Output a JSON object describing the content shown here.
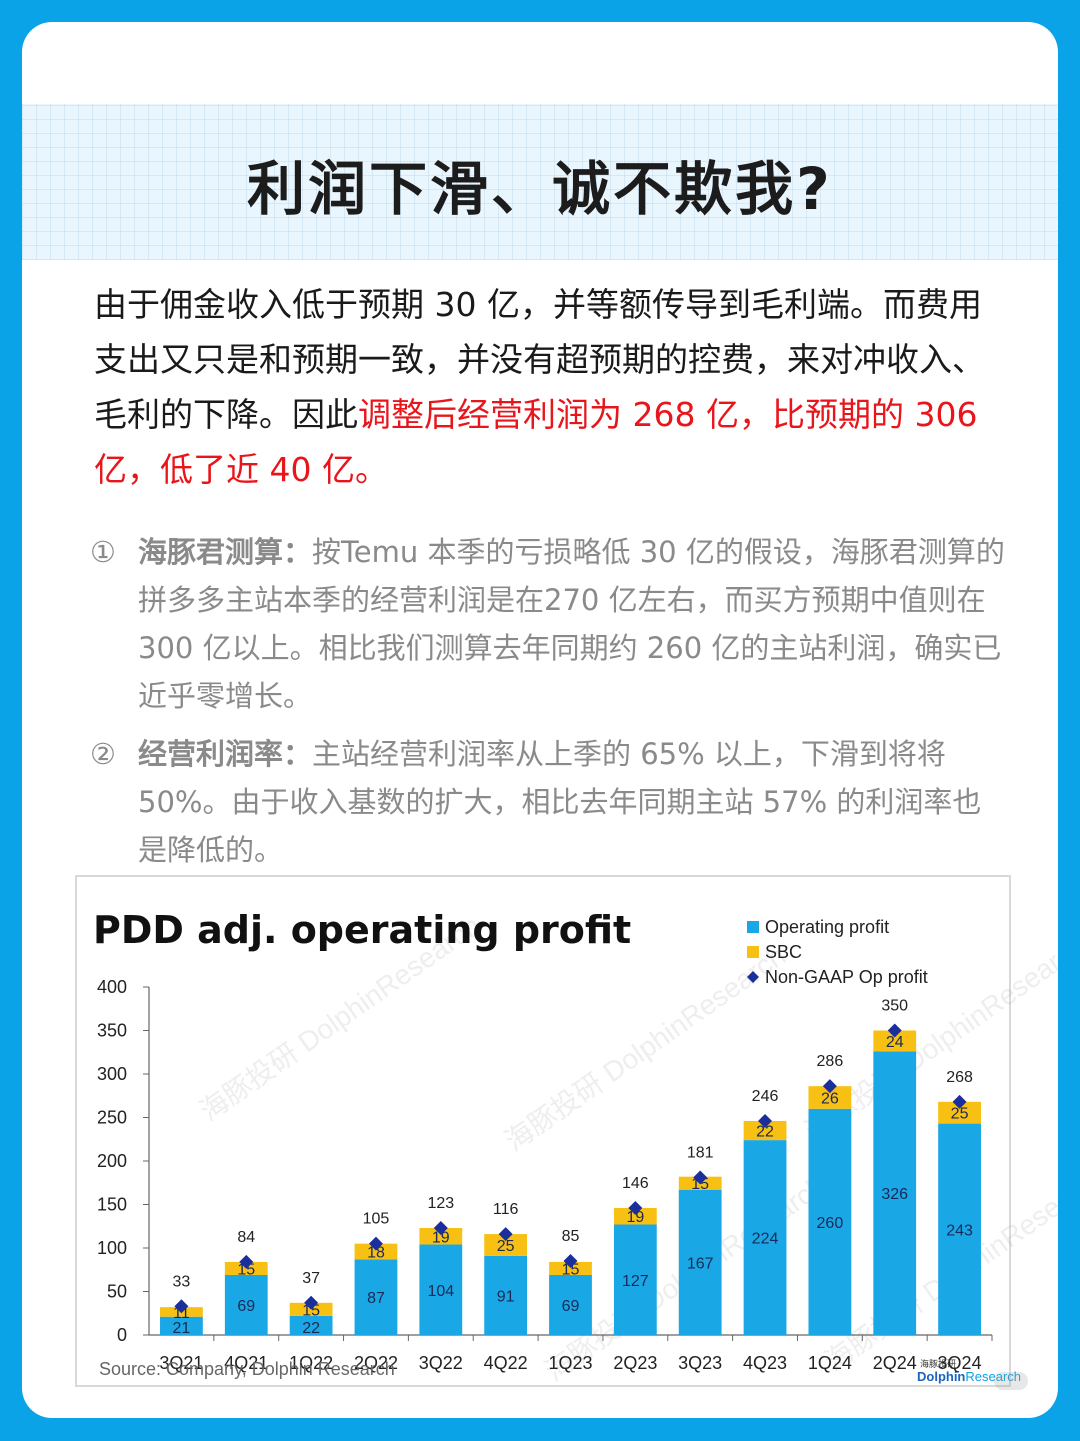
{
  "title": "利润下滑、诚不欺我?",
  "intro": {
    "plain": "由于佣金收入低于预期 30 亿，并等额传导到毛利端。而费用支出又只是和预期一致，并没有超预期的控费，来对冲收入、毛利的下降。因此",
    "highlight": "调整后经营利润为 268 亿，比预期的 306 亿，低了近 40 亿。"
  },
  "notes": [
    {
      "marker": "①",
      "head": "海豚君测算：",
      "text": "按Temu 本季的亏损略低 30 亿的假设，海豚君测算的拼多多主站本季的经营利润是在270 亿左右，而买方预期中值则在 300 亿以上。相比我们测算去年同期约 260 亿的主站利润，确实已近乎零增长。"
    },
    {
      "marker": "②",
      "head": "经营利润率：",
      "text": "主站经营利润率从上季的 65% 以上，下滑到将将 50%。由于收入基数的扩大，相比去年同期主站 57% 的利润率也是降低的。"
    }
  ],
  "chart_data": {
    "type": "bar",
    "title": "PDD adj. operating profit",
    "categories": [
      "3Q21",
      "4Q21",
      "1Q22",
      "2Q22",
      "3Q22",
      "4Q22",
      "1Q23",
      "2Q23",
      "3Q23",
      "4Q23",
      "1Q24",
      "2Q24",
      "3Q24"
    ],
    "series": [
      {
        "name": "Operating profit",
        "type": "bar-stacked",
        "color": "#1aa7e6",
        "values": [
          21,
          69,
          22,
          87,
          104,
          91,
          69,
          127,
          167,
          224,
          260,
          326,
          243
        ]
      },
      {
        "name": "SBC",
        "type": "bar-stacked",
        "color": "#f7c012",
        "values": [
          11,
          15,
          15,
          18,
          19,
          25,
          15,
          19,
          15,
          22,
          26,
          24,
          25
        ]
      },
      {
        "name": "Non-GAAP Op profit",
        "type": "marker",
        "color": "#1a2f9c",
        "values": [
          33,
          84,
          37,
          105,
          123,
          116,
          85,
          146,
          181,
          246,
          286,
          350,
          268
        ]
      }
    ],
    "ylim": [
      0,
      400
    ],
    "yticks": [
      0,
      50,
      100,
      150,
      200,
      250,
      300,
      350,
      400
    ],
    "legend_position": "top-right",
    "grid": false,
    "source": "Source: Company, Dolphin Research"
  },
  "watermark": {
    "cn": "海豚投研",
    "en": "DolphinResearch"
  },
  "brand": {
    "cn": "海豚投研",
    "en_a": "Dolphin",
    "en_b": "Research"
  }
}
